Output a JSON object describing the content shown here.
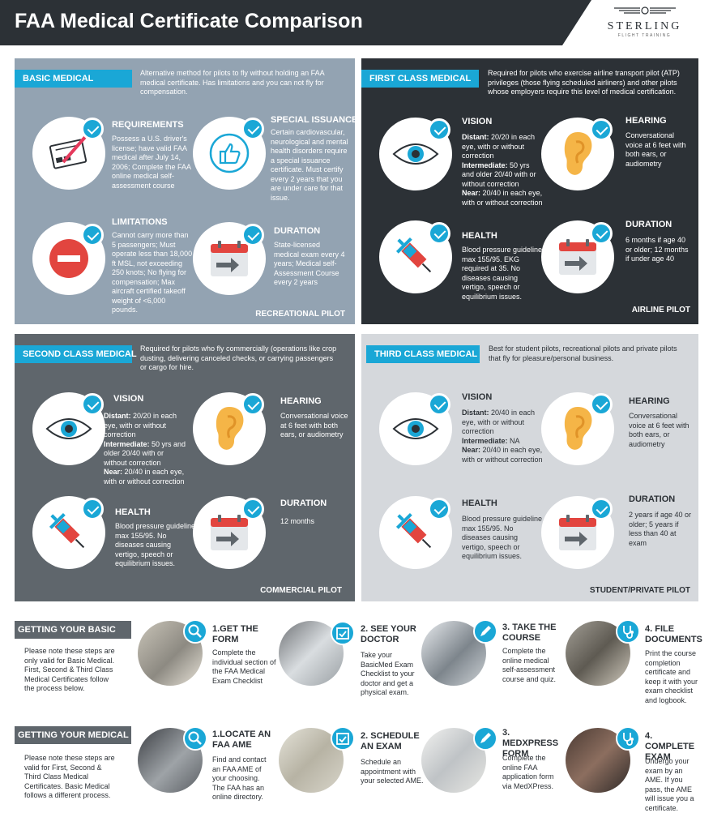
{
  "header": {
    "title": "FAA Medical Certificate Comparison"
  },
  "logo": {
    "name": "STERLING",
    "sub": "FLIGHT TRAINING"
  },
  "basic": {
    "tag": "BASIC MEDICAL",
    "intro": "Alternative method for pilots to fly without holding an FAA medical certificate. Has limitations and you can not fly for compensation.",
    "req_h": "REQUIREMENTS",
    "req_d": "Possess a U.S. driver's license; have valid FAA medical after July 14, 2006; Complete the FAA online medical self-assessment course",
    "spec_h": "SPECIAL ISSUANCE",
    "spec_d": "Certain cardiovascular, neurological and mental health disorders require a special issuance certificate. Must certify every 2 years that you are under care for that issue.",
    "lim_h": "LIMITATIONS",
    "lim_d": "Cannot carry more than 5 passengers; Must operate less than 18,000 ft MSL, not exceeding 250 knots; No flying for compensation; Max aircraft certified takeoff weight of <6,000 pounds.",
    "dur_h": "DURATION",
    "dur_d": "State-licensed medical exam every 4 years; Medical self-Assessment Course every 2 years",
    "footer": "RECREATIONAL PILOT"
  },
  "first": {
    "tag": "FIRST CLASS MEDICAL",
    "intro": "Required for pilots who exercise airline transport pilot (ATP) privileges (those flying scheduled airliners) and other pilots whose employers require this level of medical certification.",
    "vis_h": "VISION",
    "vis": [
      {
        "b": "Distant:",
        "t": " 20/20 in each eye, with or without correction"
      },
      {
        "b": "Intermediate:",
        "t": " 50 yrs and older 20/40 with or without correction"
      },
      {
        "b": "Near:",
        "t": " 20/40 in each eye, with or without correction"
      }
    ],
    "hear_h": "HEARING",
    "hear_d": "Conversational voice at 6 feet with both ears, or audiometry",
    "health_h": "HEALTH",
    "health_d": "Blood pressure guideline max 155/95. EKG required at 35. No diseases causing vertigo, speech or equilibrium issues.",
    "dur_h": "DURATION",
    "dur_d": "6 months if age 40 or older; 12 months if under age 40",
    "footer": "AIRLINE PILOT"
  },
  "second": {
    "tag": "SECOND CLASS MEDICAL",
    "intro": "Required for pilots who fly commercially (operations like crop dusting, delivering canceled checks, or carrying passengers or cargo for hire.",
    "vis_h": "VISION",
    "vis": [
      {
        "b": "Distant:",
        "t": " 20/20 in each eye, with or without correction"
      },
      {
        "b": "Intermediate:",
        "t": " 50 yrs and older 20/40 with or without correction"
      },
      {
        "b": "Near:",
        "t": " 20/40 in each eye, with or without correction"
      }
    ],
    "hear_h": "HEARING",
    "hear_d": "Conversational voice at 6 feet with both ears, or audiometry",
    "health_h": "HEALTH",
    "health_d": "Blood pressure guideline max 155/95. No diseases causing vertigo, speech or equilibrium issues.",
    "dur_h": "DURATION",
    "dur_d": "12 months",
    "footer": "COMMERCIAL PILOT"
  },
  "third": {
    "tag": "THIRD CLASS MEDICAL",
    "intro": "Best for student pilots, recreational pilots and private pilots that fly for pleasure/personal business.",
    "vis_h": "VISION",
    "vis": [
      {
        "b": "Distant:",
        "t": " 20/40 in each eye, with or without correction"
      },
      {
        "b": "Intermediate:",
        "t": " NA"
      },
      {
        "b": "Near:",
        "t": " 20/40 in each eye, with or without correction"
      }
    ],
    "hear_h": "HEARING",
    "hear_d": "Conversational voice at 6 feet with both ears, or audiometry",
    "health_h": "HEALTH",
    "health_d": "Blood pressure guideline max 155/95. No diseases causing vertigo, speech or equilibrium issues.",
    "dur_h": "DURATION",
    "dur_d": "2 years if age 40 or older; 5 years if less than 40 at exam",
    "footer": "STUDENT/PRIVATE PILOT"
  },
  "basic_steps": {
    "tag": "GETTING YOUR BASIC MED",
    "note": "Please note these steps are only valid for Basic Medical. First, Second & Third Class Medical Certificates follow the process below.",
    "steps": [
      {
        "h": "1.GET THE FORM",
        "d": "Complete the individual section of the FAA Medical Exam Checklist"
      },
      {
        "h": "2. SEE YOUR DOCTOR",
        "d": "Take your BasicMed Exam Checklist to your doctor and get a physical exam."
      },
      {
        "h": "3. TAKE THE COURSE",
        "d": "Complete the online medical self-assessment course and quiz."
      },
      {
        "h": "4. FILE DOCUMENTS",
        "d": "Print the course completion certificate and keep it with your exam checklist and logbook."
      }
    ]
  },
  "med_steps": {
    "tag": "GETTING YOUR MEDICAL",
    "note": "Please note these steps are valid for First, Second & Third  Class Medical Certificates. Basic Medical follows a different process.",
    "steps": [
      {
        "h": "1.LOCATE AN FAA AME",
        "d": "Find and contact an FAA AME of your choosing. The FAA has an online directory."
      },
      {
        "h": "2. SCHEDULE AN EXAM",
        "d": "Schedule an appointment with your selected AME."
      },
      {
        "h": "3. MEDXPRESS FORM",
        "d": "Complete the online FAA application form via MedXPress."
      },
      {
        "h": "4. COMPLETE EXAM",
        "d": "Undergo your exam by an AME. If you pass, the AME will issue you a certificate."
      }
    ]
  },
  "colors": {
    "accent": "#1aa7d6",
    "dark": "#2c3136",
    "basic_bg": "#93a3b2",
    "second_bg": "#5f666c",
    "third_bg": "#d5d8dc"
  }
}
